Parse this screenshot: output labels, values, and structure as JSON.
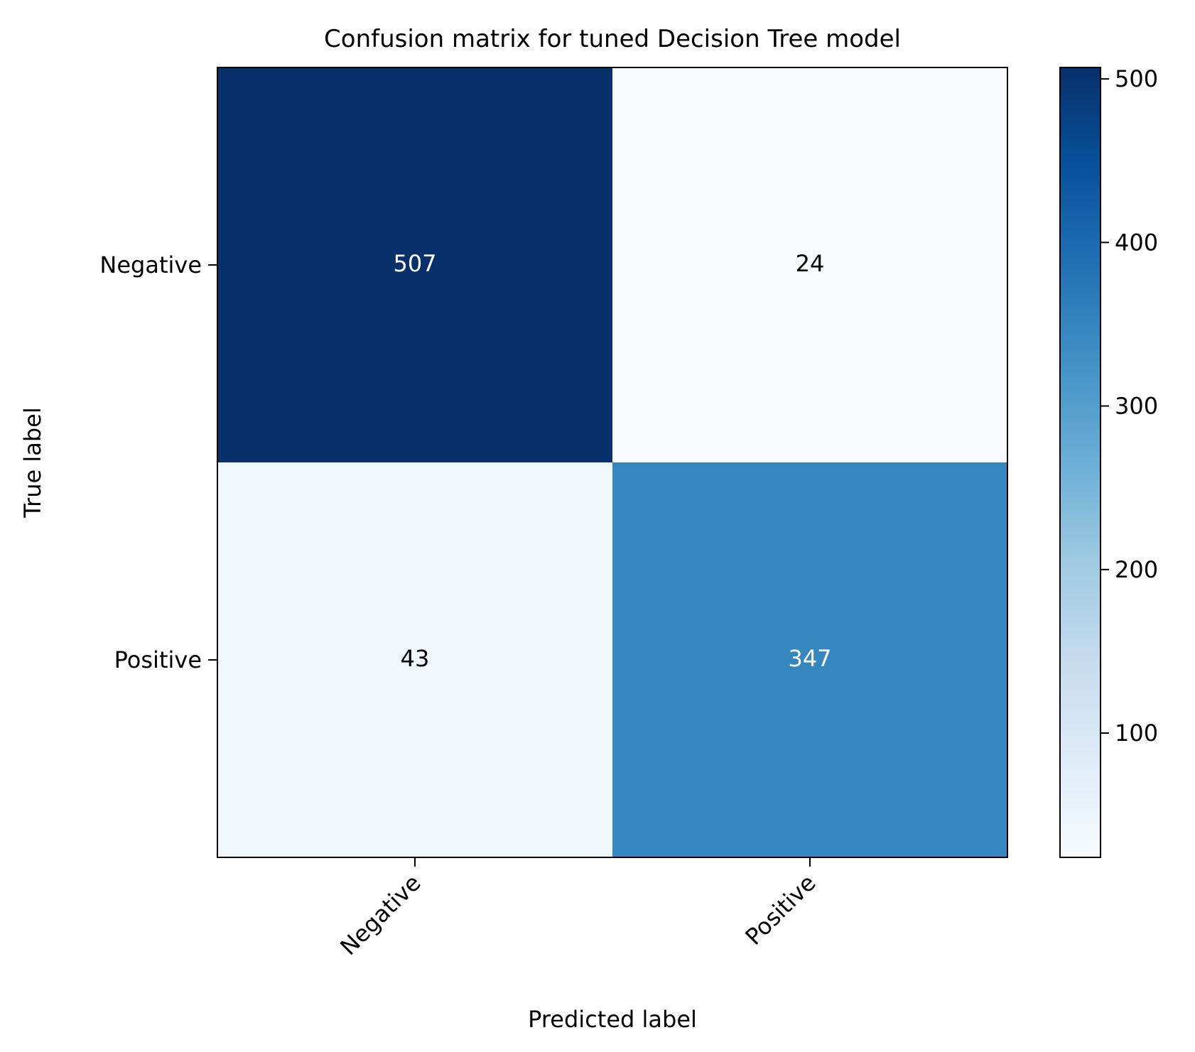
{
  "chart_data": {
    "type": "heatmap",
    "title": "Confusion matrix for tuned Decision Tree model",
    "xlabel": "Predicted label",
    "ylabel": "True label",
    "x_categories": [
      "Negative",
      "Positive"
    ],
    "y_categories": [
      "Negative",
      "Positive"
    ],
    "matrix": [
      [
        507,
        24
      ],
      [
        43,
        347
      ]
    ],
    "colormap": "Blues",
    "colorbar": {
      "ticks": [
        100,
        200,
        300,
        400,
        500
      ],
      "range": [
        24,
        507
      ]
    },
    "annotation_colors": {
      "dark": "#ffffff",
      "light": "#000000"
    },
    "grid": false
  }
}
